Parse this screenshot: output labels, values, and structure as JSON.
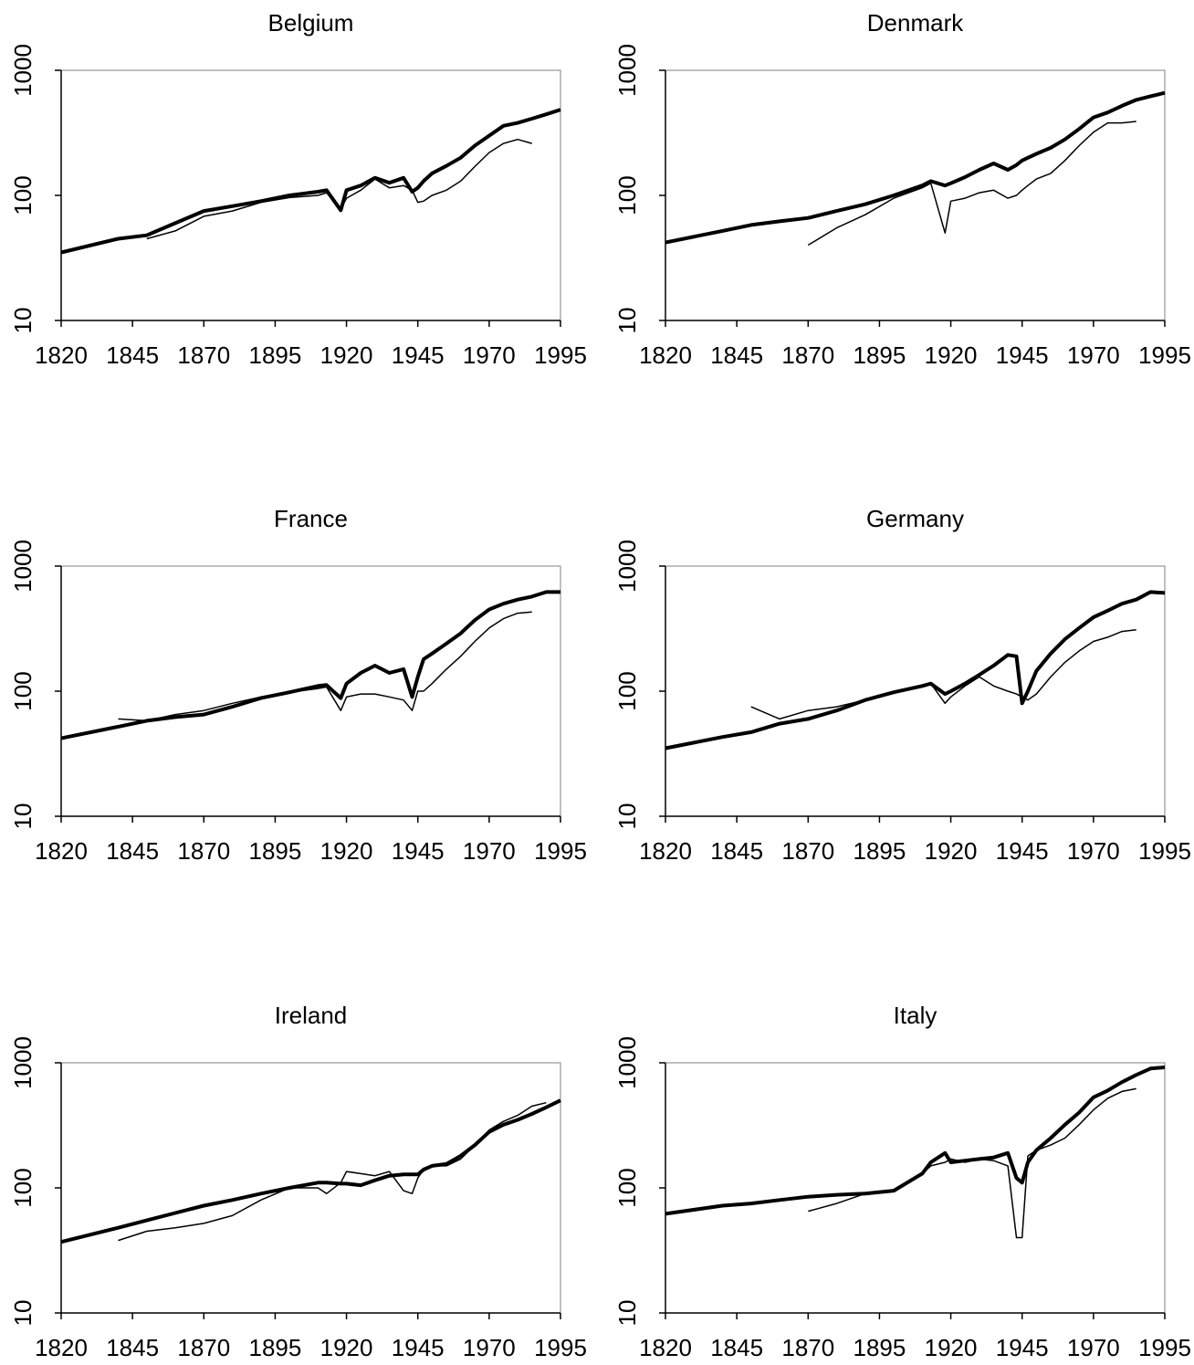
{
  "chart_data": [
    {
      "type": "line",
      "title": "Belgium",
      "log_y": true,
      "xlim": [
        1820,
        1995
      ],
      "ylim": [
        10,
        1000
      ],
      "xticks": [
        1820,
        1845,
        1870,
        1895,
        1920,
        1945,
        1970,
        1995
      ],
      "yticks": [
        10,
        100,
        1000
      ],
      "x": [
        1820,
        1840,
        1850,
        1860,
        1870,
        1880,
        1890,
        1900,
        1910,
        1913,
        1918,
        1920,
        1925,
        1930,
        1935,
        1940,
        1943,
        1945,
        1947,
        1950,
        1955,
        1960,
        1965,
        1970,
        1975,
        1980,
        1985,
        1990,
        1995
      ],
      "series": [
        {
          "color": "#000000",
          "line_width": 4,
          "values": [
            35,
            45,
            48,
            60,
            75,
            82,
            90,
            100,
            107,
            110,
            76,
            110,
            120,
            138,
            126,
            138,
            107,
            115,
            130,
            150,
            172,
            200,
            250,
            300,
            360,
            380,
            410,
            445,
            485
          ]
        },
        {
          "color": "#000000",
          "line_width": 1.5,
          "values": [
            null,
            null,
            45,
            52,
            68,
            75,
            88,
            96,
            100,
            105,
            78,
            95,
            110,
            135,
            115,
            120,
            110,
            88,
            90,
            100,
            110,
            130,
            170,
            220,
            260,
            280,
            260,
            null,
            null
          ]
        }
      ]
    },
    {
      "type": "line",
      "title": "Denmark",
      "log_y": true,
      "xlim": [
        1820,
        1995
      ],
      "ylim": [
        10,
        1000
      ],
      "xticks": [
        1820,
        1845,
        1870,
        1895,
        1920,
        1945,
        1970,
        1995
      ],
      "yticks": [
        10,
        100,
        1000
      ],
      "x": [
        1820,
        1840,
        1850,
        1860,
        1870,
        1880,
        1890,
        1900,
        1910,
        1913,
        1918,
        1920,
        1925,
        1930,
        1935,
        1940,
        1943,
        1945,
        1947,
        1950,
        1955,
        1960,
        1965,
        1970,
        1975,
        1980,
        1985,
        1990,
        1995
      ],
      "series": [
        {
          "color": "#000000",
          "line_width": 4,
          "values": [
            42,
            52,
            58,
            62,
            66,
            75,
            85,
            100,
            120,
            130,
            120,
            125,
            140,
            160,
            180,
            160,
            175,
            190,
            200,
            215,
            240,
            280,
            340,
            420,
            460,
            520,
            580,
            620,
            660
          ]
        },
        {
          "color": "#000000",
          "line_width": 1.5,
          "values": [
            null,
            null,
            null,
            null,
            40,
            55,
            70,
            95,
            115,
            125,
            50,
            90,
            95,
            105,
            110,
            95,
            100,
            110,
            120,
            135,
            150,
            190,
            250,
            320,
            380,
            380,
            390,
            null,
            null
          ]
        }
      ]
    },
    {
      "type": "line",
      "title": "France",
      "log_y": true,
      "xlim": [
        1820,
        1995
      ],
      "ylim": [
        10,
        1000
      ],
      "xticks": [
        1820,
        1845,
        1870,
        1895,
        1920,
        1945,
        1970,
        1995
      ],
      "yticks": [
        10,
        100,
        1000
      ],
      "x": [
        1820,
        1840,
        1850,
        1860,
        1870,
        1880,
        1890,
        1900,
        1910,
        1913,
        1918,
        1920,
        1925,
        1930,
        1935,
        1940,
        1943,
        1945,
        1947,
        1950,
        1955,
        1960,
        1965,
        1970,
        1975,
        1980,
        1985,
        1990,
        1995
      ],
      "series": [
        {
          "color": "#000000",
          "line_width": 4,
          "values": [
            42,
            52,
            58,
            62,
            65,
            75,
            88,
            98,
            110,
            112,
            88,
            115,
            140,
            160,
            140,
            150,
            90,
            130,
            180,
            200,
            240,
            290,
            370,
            450,
            500,
            540,
            570,
            620,
            620
          ]
        },
        {
          "color": "#000000",
          "line_width": 1.5,
          "values": [
            null,
            60,
            58,
            65,
            70,
            80,
            90,
            98,
            105,
            108,
            70,
            90,
            95,
            95,
            90,
            85,
            70,
            100,
            100,
            115,
            150,
            190,
            250,
            320,
            380,
            420,
            430,
            null,
            null
          ]
        }
      ]
    },
    {
      "type": "line",
      "title": "Germany",
      "log_y": true,
      "xlim": [
        1820,
        1995
      ],
      "ylim": [
        10,
        1000
      ],
      "xticks": [
        1820,
        1845,
        1870,
        1895,
        1920,
        1945,
        1970,
        1995
      ],
      "yticks": [
        10,
        100,
        1000
      ],
      "x": [
        1820,
        1840,
        1850,
        1860,
        1870,
        1880,
        1890,
        1900,
        1910,
        1913,
        1918,
        1920,
        1925,
        1930,
        1935,
        1940,
        1943,
        1945,
        1947,
        1950,
        1955,
        1960,
        1965,
        1970,
        1975,
        1980,
        1985,
        1990,
        1995
      ],
      "series": [
        {
          "color": "#000000",
          "line_width": 4,
          "values": [
            35,
            43,
            47,
            55,
            60,
            70,
            85,
            98,
            110,
            115,
            95,
            100,
            115,
            135,
            160,
            195,
            190,
            80,
            100,
            145,
            200,
            260,
            320,
            390,
            440,
            500,
            540,
            620,
            610
          ]
        },
        {
          "color": "#000000",
          "line_width": 1.5,
          "values": [
            null,
            null,
            75,
            60,
            70,
            75,
            85,
            98,
            110,
            115,
            80,
            90,
            110,
            130,
            110,
            100,
            95,
            90,
            85,
            95,
            130,
            170,
            210,
            250,
            270,
            300,
            310,
            null,
            null
          ]
        }
      ]
    },
    {
      "type": "line",
      "title": "Ireland",
      "log_y": true,
      "xlim": [
        1820,
        1995
      ],
      "ylim": [
        10,
        1000
      ],
      "xticks": [
        1820,
        1845,
        1870,
        1895,
        1920,
        1945,
        1970,
        1995
      ],
      "yticks": [
        10,
        100,
        1000
      ],
      "x": [
        1820,
        1840,
        1850,
        1860,
        1870,
        1880,
        1890,
        1900,
        1910,
        1913,
        1918,
        1920,
        1925,
        1930,
        1935,
        1940,
        1943,
        1945,
        1947,
        1950,
        1955,
        1960,
        1965,
        1970,
        1975,
        1980,
        1985,
        1990,
        1995
      ],
      "series": [
        {
          "color": "#000000",
          "line_width": 4,
          "values": [
            37,
            48,
            55,
            63,
            72,
            80,
            90,
            100,
            110,
            110,
            108,
            108,
            105,
            115,
            125,
            128,
            128,
            128,
            140,
            150,
            155,
            180,
            220,
            280,
            320,
            350,
            390,
            440,
            500
          ]
        },
        {
          "color": "#000000",
          "line_width": 1.5,
          "values": [
            null,
            38,
            45,
            48,
            52,
            60,
            80,
            100,
            100,
            90,
            110,
            135,
            130,
            125,
            135,
            95,
            90,
            120,
            140,
            150,
            150,
            170,
            220,
            290,
            340,
            380,
            450,
            480,
            null
          ]
        }
      ]
    },
    {
      "type": "line",
      "title": "Italy",
      "log_y": true,
      "xlim": [
        1820,
        1995
      ],
      "ylim": [
        10,
        1000
      ],
      "xticks": [
        1820,
        1845,
        1870,
        1895,
        1920,
        1945,
        1970,
        1995
      ],
      "yticks": [
        10,
        100,
        1000
      ],
      "x": [
        1820,
        1840,
        1850,
        1860,
        1870,
        1880,
        1890,
        1900,
        1910,
        1913,
        1918,
        1920,
        1925,
        1930,
        1935,
        1940,
        1943,
        1945,
        1947,
        1950,
        1955,
        1960,
        1965,
        1970,
        1975,
        1980,
        1985,
        1990,
        1995
      ],
      "series": [
        {
          "color": "#000000",
          "line_width": 4,
          "values": [
            62,
            72,
            75,
            80,
            85,
            88,
            90,
            95,
            130,
            160,
            190,
            160,
            165,
            170,
            175,
            190,
            120,
            110,
            160,
            200,
            250,
            320,
            400,
            530,
            600,
            700,
            800,
            900,
            920
          ]
        },
        {
          "color": "#000000",
          "line_width": 1.5,
          "values": [
            null,
            null,
            null,
            null,
            65,
            75,
            90,
            95,
            130,
            150,
            160,
            170,
            160,
            170,
            165,
            150,
            40,
            40,
            180,
            200,
            220,
            250,
            320,
            420,
            520,
            590,
            620,
            null,
            null
          ]
        }
      ]
    }
  ]
}
